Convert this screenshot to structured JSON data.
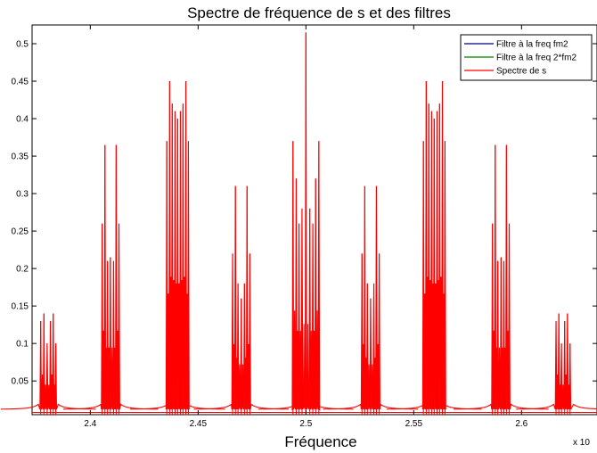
{
  "chart_data": {
    "type": "line",
    "title": "Spectre de fréquence de s et des filtres",
    "xlabel": "Fréquence",
    "ylabel": "",
    "x_multiplier": "x 10",
    "xlim": [
      2.373,
      2.635
    ],
    "ylim": [
      0.005,
      0.525
    ],
    "grid": false,
    "legend_position": "top-right",
    "xticks": [
      {
        "value": 2.4,
        "label": "2.4"
      },
      {
        "value": 2.45,
        "label": "2.45"
      },
      {
        "value": 2.5,
        "label": "2.5"
      },
      {
        "value": 2.55,
        "label": "2.55"
      },
      {
        "value": 2.6,
        "label": "2.6"
      }
    ],
    "yticks": [
      {
        "value": 0.05,
        "label": "0.05"
      },
      {
        "value": 0.1,
        "label": "0.1"
      },
      {
        "value": 0.15,
        "label": "0.15"
      },
      {
        "value": 0.2,
        "label": "0.2"
      },
      {
        "value": 0.25,
        "label": "0.25"
      },
      {
        "value": 0.3,
        "label": "0.3"
      },
      {
        "value": 0.35,
        "label": "0.35"
      },
      {
        "value": 0.4,
        "label": "0.4"
      },
      {
        "value": 0.45,
        "label": "0.45"
      },
      {
        "value": 0.5,
        "label": "0.5"
      }
    ],
    "series": [
      {
        "name": "Filtre à la freq fm2",
        "color": "#000080"
      },
      {
        "name": "Filtre à la freq 2*fm2",
        "color": "#008000"
      },
      {
        "name": "Spectre de s",
        "color": "#ff0000"
      }
    ],
    "peak_clusters": [
      {
        "center": 2.3805,
        "peaks": [
          [
            2.377,
            0.13
          ],
          [
            2.3785,
            0.14
          ],
          [
            2.38,
            0.1
          ],
          [
            2.3815,
            0.13
          ],
          [
            2.3828,
            0.14
          ],
          [
            2.384,
            0.1
          ]
        ]
      },
      {
        "center": 2.4095,
        "peaks": [
          [
            2.4055,
            0.26
          ],
          [
            2.4068,
            0.365
          ],
          [
            2.408,
            0.21
          ],
          [
            2.4093,
            0.215
          ],
          [
            2.4108,
            0.21
          ],
          [
            2.412,
            0.365
          ],
          [
            2.4133,
            0.26
          ]
        ]
      },
      {
        "center": 2.4405,
        "peaks": [
          [
            2.4355,
            0.37
          ],
          [
            2.4368,
            0.45
          ],
          [
            2.438,
            0.42
          ],
          [
            2.4393,
            0.41
          ],
          [
            2.4405,
            0.4
          ],
          [
            2.4418,
            0.41
          ],
          [
            2.443,
            0.42
          ],
          [
            2.4443,
            0.45
          ],
          [
            2.4455,
            0.37
          ]
        ]
      },
      {
        "center": 2.47,
        "peaks": [
          [
            2.466,
            0.22
          ],
          [
            2.4673,
            0.31
          ],
          [
            2.4685,
            0.18
          ],
          [
            2.47,
            0.16
          ],
          [
            2.4715,
            0.18
          ],
          [
            2.4727,
            0.31
          ],
          [
            2.474,
            0.22
          ]
        ]
      },
      {
        "center": 2.5,
        "peaks": [
          [
            2.494,
            0.37
          ],
          [
            2.4955,
            0.32
          ],
          [
            2.4968,
            0.26
          ],
          [
            2.4982,
            0.28
          ],
          [
            2.5,
            0.515
          ],
          [
            2.5018,
            0.28
          ],
          [
            2.5032,
            0.26
          ],
          [
            2.5045,
            0.32
          ],
          [
            2.506,
            0.37
          ]
        ]
      },
      {
        "center": 2.53,
        "peaks": [
          [
            2.526,
            0.22
          ],
          [
            2.5273,
            0.31
          ],
          [
            2.5285,
            0.18
          ],
          [
            2.53,
            0.16
          ],
          [
            2.5315,
            0.18
          ],
          [
            2.5327,
            0.31
          ],
          [
            2.534,
            0.22
          ]
        ]
      },
      {
        "center": 2.5595,
        "peaks": [
          [
            2.5545,
            0.37
          ],
          [
            2.5558,
            0.45
          ],
          [
            2.557,
            0.42
          ],
          [
            2.5583,
            0.41
          ],
          [
            2.5595,
            0.4
          ],
          [
            2.5608,
            0.41
          ],
          [
            2.562,
            0.42
          ],
          [
            2.5633,
            0.45
          ],
          [
            2.5645,
            0.37
          ]
        ]
      },
      {
        "center": 2.5905,
        "peaks": [
          [
            2.5865,
            0.26
          ],
          [
            2.5878,
            0.365
          ],
          [
            2.589,
            0.21
          ],
          [
            2.5905,
            0.215
          ],
          [
            2.5918,
            0.21
          ],
          [
            2.593,
            0.365
          ],
          [
            2.5943,
            0.26
          ]
        ]
      },
      {
        "center": 2.6195,
        "peaks": [
          [
            2.616,
            0.13
          ],
          [
            2.6173,
            0.14
          ],
          [
            2.6185,
            0.1
          ],
          [
            2.62,
            0.13
          ],
          [
            2.6213,
            0.14
          ],
          [
            2.6225,
            0.1
          ]
        ]
      }
    ]
  }
}
